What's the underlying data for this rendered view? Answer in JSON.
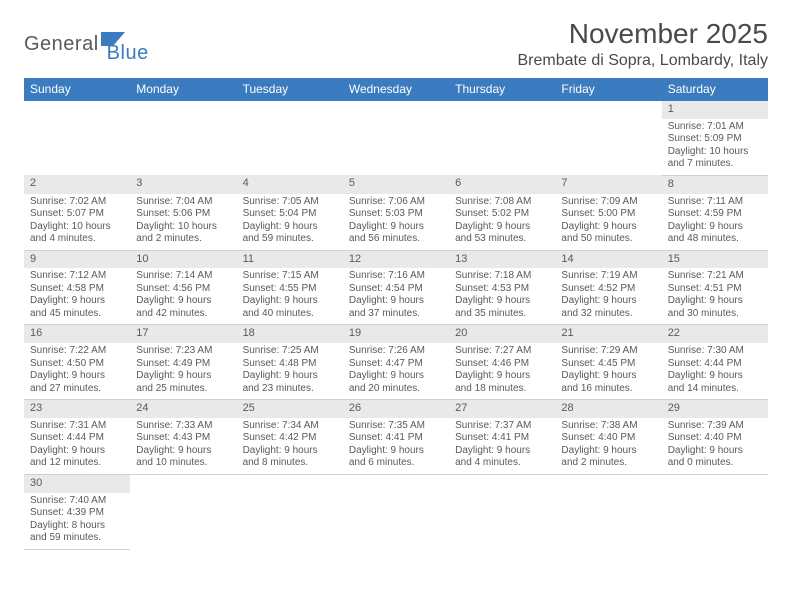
{
  "logo": {
    "part1": "General",
    "part2": "Blue"
  },
  "title": "November 2025",
  "location": "Brembate di Sopra, Lombardy, Italy",
  "colors": {
    "header_bg": "#3b7bbf",
    "header_text": "#ffffff",
    "daynum_bg": "#e9e9e9",
    "border": "#c9d3df",
    "text": "#5a5a5a"
  },
  "weekdays": [
    "Sunday",
    "Monday",
    "Tuesday",
    "Wednesday",
    "Thursday",
    "Friday",
    "Saturday"
  ],
  "weeks": [
    [
      null,
      null,
      null,
      null,
      null,
      null,
      {
        "n": "1",
        "sr": "Sunrise: 7:01 AM",
        "ss": "Sunset: 5:09 PM",
        "d1": "Daylight: 10 hours",
        "d2": "and 7 minutes."
      }
    ],
    [
      {
        "n": "2",
        "sr": "Sunrise: 7:02 AM",
        "ss": "Sunset: 5:07 PM",
        "d1": "Daylight: 10 hours",
        "d2": "and 4 minutes."
      },
      {
        "n": "3",
        "sr": "Sunrise: 7:04 AM",
        "ss": "Sunset: 5:06 PM",
        "d1": "Daylight: 10 hours",
        "d2": "and 2 minutes."
      },
      {
        "n": "4",
        "sr": "Sunrise: 7:05 AM",
        "ss": "Sunset: 5:04 PM",
        "d1": "Daylight: 9 hours",
        "d2": "and 59 minutes."
      },
      {
        "n": "5",
        "sr": "Sunrise: 7:06 AM",
        "ss": "Sunset: 5:03 PM",
        "d1": "Daylight: 9 hours",
        "d2": "and 56 minutes."
      },
      {
        "n": "6",
        "sr": "Sunrise: 7:08 AM",
        "ss": "Sunset: 5:02 PM",
        "d1": "Daylight: 9 hours",
        "d2": "and 53 minutes."
      },
      {
        "n": "7",
        "sr": "Sunrise: 7:09 AM",
        "ss": "Sunset: 5:00 PM",
        "d1": "Daylight: 9 hours",
        "d2": "and 50 minutes."
      },
      {
        "n": "8",
        "sr": "Sunrise: 7:11 AM",
        "ss": "Sunset: 4:59 PM",
        "d1": "Daylight: 9 hours",
        "d2": "and 48 minutes."
      }
    ],
    [
      {
        "n": "9",
        "sr": "Sunrise: 7:12 AM",
        "ss": "Sunset: 4:58 PM",
        "d1": "Daylight: 9 hours",
        "d2": "and 45 minutes."
      },
      {
        "n": "10",
        "sr": "Sunrise: 7:14 AM",
        "ss": "Sunset: 4:56 PM",
        "d1": "Daylight: 9 hours",
        "d2": "and 42 minutes."
      },
      {
        "n": "11",
        "sr": "Sunrise: 7:15 AM",
        "ss": "Sunset: 4:55 PM",
        "d1": "Daylight: 9 hours",
        "d2": "and 40 minutes."
      },
      {
        "n": "12",
        "sr": "Sunrise: 7:16 AM",
        "ss": "Sunset: 4:54 PM",
        "d1": "Daylight: 9 hours",
        "d2": "and 37 minutes."
      },
      {
        "n": "13",
        "sr": "Sunrise: 7:18 AM",
        "ss": "Sunset: 4:53 PM",
        "d1": "Daylight: 9 hours",
        "d2": "and 35 minutes."
      },
      {
        "n": "14",
        "sr": "Sunrise: 7:19 AM",
        "ss": "Sunset: 4:52 PM",
        "d1": "Daylight: 9 hours",
        "d2": "and 32 minutes."
      },
      {
        "n": "15",
        "sr": "Sunrise: 7:21 AM",
        "ss": "Sunset: 4:51 PM",
        "d1": "Daylight: 9 hours",
        "d2": "and 30 minutes."
      }
    ],
    [
      {
        "n": "16",
        "sr": "Sunrise: 7:22 AM",
        "ss": "Sunset: 4:50 PM",
        "d1": "Daylight: 9 hours",
        "d2": "and 27 minutes."
      },
      {
        "n": "17",
        "sr": "Sunrise: 7:23 AM",
        "ss": "Sunset: 4:49 PM",
        "d1": "Daylight: 9 hours",
        "d2": "and 25 minutes."
      },
      {
        "n": "18",
        "sr": "Sunrise: 7:25 AM",
        "ss": "Sunset: 4:48 PM",
        "d1": "Daylight: 9 hours",
        "d2": "and 23 minutes."
      },
      {
        "n": "19",
        "sr": "Sunrise: 7:26 AM",
        "ss": "Sunset: 4:47 PM",
        "d1": "Daylight: 9 hours",
        "d2": "and 20 minutes."
      },
      {
        "n": "20",
        "sr": "Sunrise: 7:27 AM",
        "ss": "Sunset: 4:46 PM",
        "d1": "Daylight: 9 hours",
        "d2": "and 18 minutes."
      },
      {
        "n": "21",
        "sr": "Sunrise: 7:29 AM",
        "ss": "Sunset: 4:45 PM",
        "d1": "Daylight: 9 hours",
        "d2": "and 16 minutes."
      },
      {
        "n": "22",
        "sr": "Sunrise: 7:30 AM",
        "ss": "Sunset: 4:44 PM",
        "d1": "Daylight: 9 hours",
        "d2": "and 14 minutes."
      }
    ],
    [
      {
        "n": "23",
        "sr": "Sunrise: 7:31 AM",
        "ss": "Sunset: 4:44 PM",
        "d1": "Daylight: 9 hours",
        "d2": "and 12 minutes."
      },
      {
        "n": "24",
        "sr": "Sunrise: 7:33 AM",
        "ss": "Sunset: 4:43 PM",
        "d1": "Daylight: 9 hours",
        "d2": "and 10 minutes."
      },
      {
        "n": "25",
        "sr": "Sunrise: 7:34 AM",
        "ss": "Sunset: 4:42 PM",
        "d1": "Daylight: 9 hours",
        "d2": "and 8 minutes."
      },
      {
        "n": "26",
        "sr": "Sunrise: 7:35 AM",
        "ss": "Sunset: 4:41 PM",
        "d1": "Daylight: 9 hours",
        "d2": "and 6 minutes."
      },
      {
        "n": "27",
        "sr": "Sunrise: 7:37 AM",
        "ss": "Sunset: 4:41 PM",
        "d1": "Daylight: 9 hours",
        "d2": "and 4 minutes."
      },
      {
        "n": "28",
        "sr": "Sunrise: 7:38 AM",
        "ss": "Sunset: 4:40 PM",
        "d1": "Daylight: 9 hours",
        "d2": "and 2 minutes."
      },
      {
        "n": "29",
        "sr": "Sunrise: 7:39 AM",
        "ss": "Sunset: 4:40 PM",
        "d1": "Daylight: 9 hours",
        "d2": "and 0 minutes."
      }
    ],
    [
      {
        "n": "30",
        "sr": "Sunrise: 7:40 AM",
        "ss": "Sunset: 4:39 PM",
        "d1": "Daylight: 8 hours",
        "d2": "and 59 minutes."
      },
      null,
      null,
      null,
      null,
      null,
      null
    ]
  ]
}
